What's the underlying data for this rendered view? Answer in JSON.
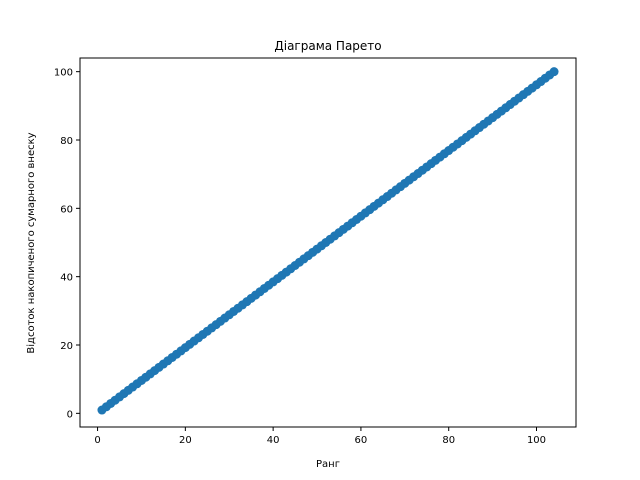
{
  "chart_data": {
    "type": "scatter",
    "title": "Діаграма Парето",
    "xlabel": "Ранг",
    "ylabel": "Відсоток накопиченого сумарного внеску",
    "xlim": [
      -4,
      109
    ],
    "ylim": [
      -4.0,
      104.0
    ],
    "xticks": [
      0,
      20,
      40,
      60,
      80,
      100
    ],
    "yticks": [
      0,
      20,
      40,
      60,
      80,
      100
    ],
    "xtick_labels": [
      "0",
      "20",
      "40",
      "60",
      "80",
      "100"
    ],
    "ytick_labels": [
      "0",
      "20",
      "40",
      "60",
      "80",
      "100"
    ],
    "grid": false,
    "marker_color": "#1f77b4",
    "series": [
      {
        "x_start": 1,
        "x_end": 104,
        "x_step": 1,
        "y_formula": "100 * x / 104",
        "points_count": 104
      }
    ]
  }
}
